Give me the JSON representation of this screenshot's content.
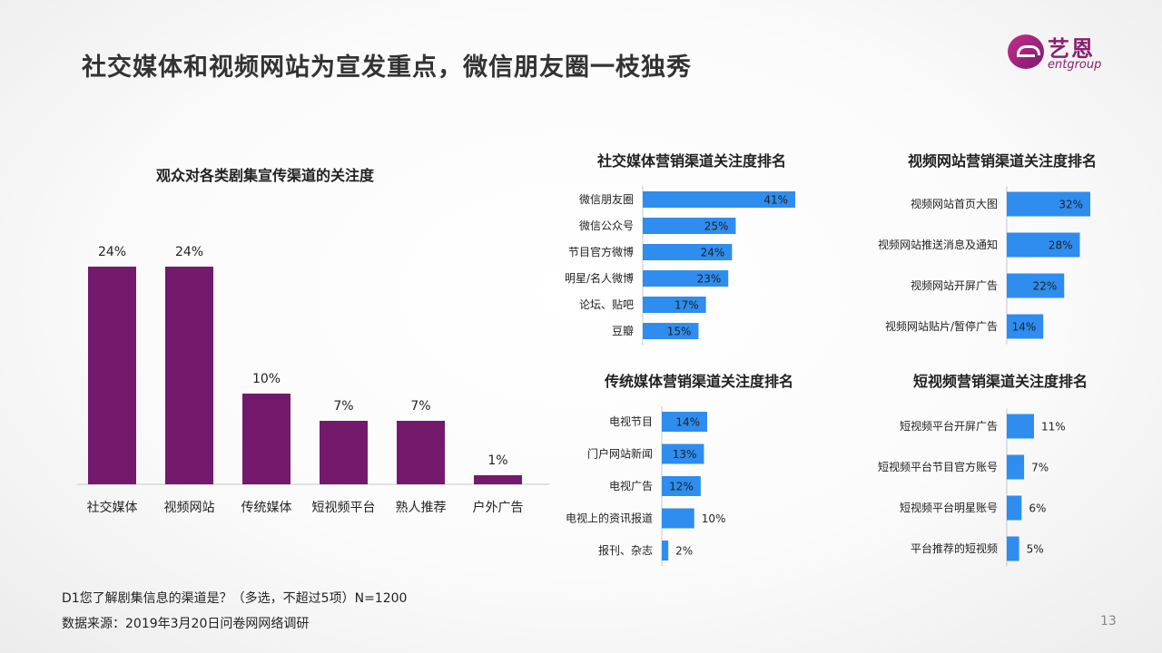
{
  "page": {
    "title": "社交媒体和视频网站为宣发重点，微信朋友圈一枝独秀",
    "logo": {
      "cn": "艺恩",
      "en": "entgroup"
    },
    "note_question": "D1您了解剧集信息的渠道是？（多选，不超过5项）N=1200",
    "note_source": "数据来源：2019年3月20日问卷网网络调研",
    "page_number": "13"
  },
  "colors": {
    "main_bar": "#731a6d",
    "rank_bar": "#2e8def"
  },
  "chart_data": [
    {
      "id": "main",
      "type": "bar",
      "title": "观众对各类剧集宣传渠道的关注度",
      "categories": [
        "社交媒体",
        "视频网站",
        "传统媒体",
        "短视频平台",
        "熟人推荐",
        "户外广告"
      ],
      "values": [
        24,
        24,
        10,
        7,
        7,
        1
      ],
      "data_labels": [
        "24%",
        "24%",
        "10%",
        "7%",
        "7%",
        "1%"
      ]
    },
    {
      "id": "social",
      "type": "bar",
      "title": "社交媒体营销渠道关注度排名",
      "categories": [
        "微信朋友圈",
        "微信公众号",
        "节目官方微博",
        "明星/名人微博",
        "论坛、贴吧",
        "豆瓣"
      ],
      "values": [
        41,
        25,
        24,
        23,
        17,
        15
      ],
      "data_labels": [
        "41%",
        "25%",
        "24%",
        "23%",
        "17%",
        "15%"
      ]
    },
    {
      "id": "video",
      "type": "bar",
      "title": "视频网站营销渠道关注度排名",
      "categories": [
        "视频网站首页大图",
        "视频网站推送消息及通知",
        "视频网站开屏广告",
        "视频网站贴片/暂停广告"
      ],
      "values": [
        32,
        28,
        22,
        14
      ],
      "data_labels": [
        "32%",
        "28%",
        "22%",
        "14%"
      ]
    },
    {
      "id": "traditional",
      "type": "bar",
      "title": "传统媒体营销渠道关注度排名",
      "categories": [
        "电视节目",
        "门户网站新闻",
        "电视广告",
        "电视上的资讯报道",
        "报刊、杂志"
      ],
      "values": [
        14,
        13,
        12,
        10,
        2
      ],
      "data_labels": [
        "14%",
        "13%",
        "12%",
        "10%",
        "2%"
      ]
    },
    {
      "id": "short",
      "type": "bar",
      "title": "短视频营销渠道关注度排名",
      "categories": [
        "短视频平台开屏广告",
        "短视频平台节目官方账号",
        "短视频平台明星账号",
        "平台推荐的短视频"
      ],
      "values": [
        11,
        7,
        6,
        5
      ],
      "data_labels": [
        "11%",
        "7%",
        "6%",
        "5%"
      ]
    }
  ]
}
